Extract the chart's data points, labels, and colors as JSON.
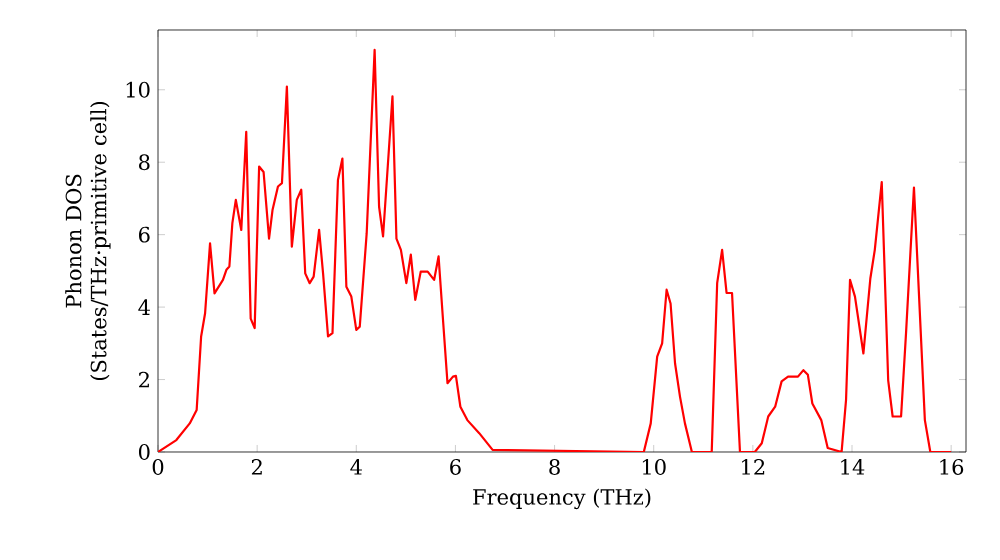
{
  "chart_data": {
    "type": "line",
    "xlabel": "Frequency (THz)",
    "ylabel": "Phonon DOS (States/THz·primitive cell)",
    "xlim": [
      0,
      16.3
    ],
    "ylim": [
      0,
      11.65
    ],
    "xticks": [
      0,
      2,
      4,
      6,
      8,
      10,
      12,
      14,
      16
    ],
    "yticks": [
      0,
      2,
      4,
      6,
      8,
      10
    ],
    "marker": "none",
    "line_style": "solid",
    "series": [
      {
        "color": "#ff0000",
        "x": [
          0,
          0.37,
          0.64,
          0.78,
          0.87,
          0.95,
          1.05,
          1.14,
          1.31,
          1.38,
          1.44,
          1.5,
          1.57,
          1.68,
          1.78,
          1.87,
          1.95,
          2.04,
          2.13,
          2.24,
          2.31,
          2.42,
          2.5,
          2.6,
          2.7,
          2.8,
          2.89,
          2.97,
          3.06,
          3.14,
          3.25,
          3.33,
          3.43,
          3.52,
          3.63,
          3.72,
          3.8,
          3.9,
          4.0,
          4.07,
          4.21,
          4.37,
          4.46,
          4.54,
          4.73,
          4.81,
          4.9,
          5.01,
          5.1,
          5.19,
          5.3,
          5.44,
          5.57,
          5.66,
          5.74,
          5.84,
          5.95,
          6.01,
          6.1,
          6.24,
          6.48,
          6.75,
          9.8,
          9.94,
          10.07,
          10.17,
          10.26,
          10.34,
          10.43,
          10.53,
          10.63,
          10.77,
          11.17,
          11.28,
          11.38,
          11.47,
          11.58,
          11.74,
          12.04,
          12.18,
          12.31,
          12.45,
          12.58,
          12.71,
          12.91,
          13.02,
          13.11,
          13.2,
          13.38,
          13.51,
          13.79,
          13.88,
          13.96,
          14.06,
          14.23,
          14.37,
          14.46,
          14.6,
          14.73,
          14.82,
          14.99,
          15.09,
          15.25,
          15.47,
          15.58,
          16.0
        ],
        "values": [
          0,
          0.33,
          0.79,
          1.16,
          3.19,
          3.83,
          5.76,
          4.38,
          4.75,
          5.03,
          5.12,
          6.32,
          6.96,
          6.13,
          8.84,
          3.68,
          3.42,
          7.88,
          7.73,
          5.89,
          6.68,
          7.33,
          7.42,
          10.09,
          5.67,
          6.96,
          7.24,
          4.93,
          4.66,
          4.84,
          6.13,
          4.93,
          3.19,
          3.28,
          7.51,
          8.1,
          4.56,
          4.29,
          3.37,
          3.46,
          6.04,
          11.1,
          6.77,
          5.95,
          9.82,
          5.89,
          5.58,
          4.66,
          5.45,
          4.2,
          4.98,
          4.98,
          4.75,
          5.4,
          3.83,
          1.9,
          2.08,
          2.1,
          1.25,
          0.88,
          0.52,
          0.06,
          0,
          0.79,
          2.63,
          3.0,
          4.48,
          4.1,
          2.45,
          1.53,
          0.79,
          0,
          0,
          4.66,
          5.58,
          4.39,
          4.39,
          0,
          0,
          0.24,
          0.98,
          1.25,
          1.95,
          2.08,
          2.08,
          2.26,
          2.13,
          1.34,
          0.88,
          0.11,
          0,
          1.44,
          4.75,
          4.29,
          2.72,
          4.79,
          5.58,
          7.45,
          1.98,
          0.98,
          0.98,
          3.28,
          7.3,
          0.88,
          0,
          0
        ]
      }
    ]
  }
}
